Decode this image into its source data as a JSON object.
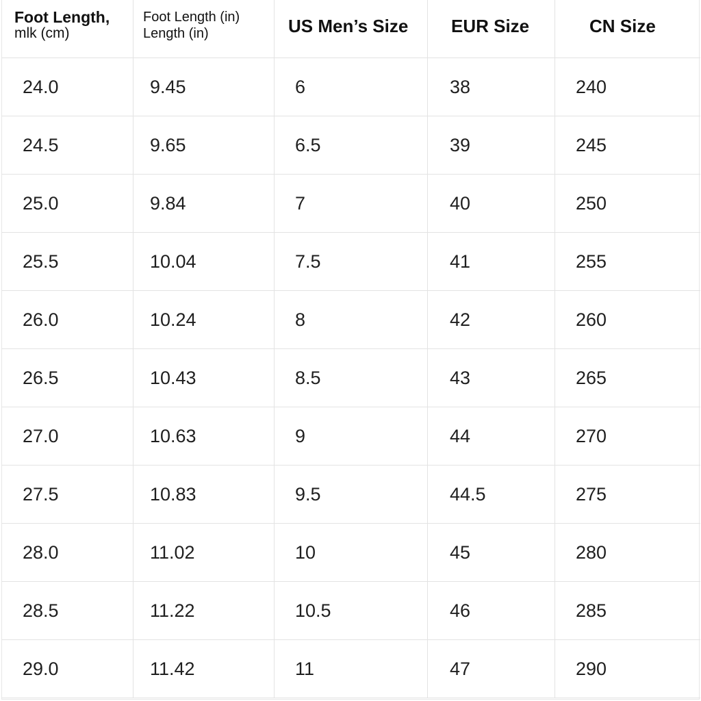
{
  "table": {
    "headers": [
      {
        "line1": "Foot Length,",
        "line2": "mlk (cm)"
      },
      {
        "line1": "Foot Length (in)",
        "line2": "Length (in)"
      },
      {
        "line1": "US Men’s Size"
      },
      {
        "line1": "EUR Size"
      },
      {
        "line1": "CN Size"
      }
    ],
    "rows": [
      [
        "24.0",
        "9.45",
        "6",
        "38",
        "240"
      ],
      [
        "24.5",
        "9.65",
        "6.5",
        "39",
        "245"
      ],
      [
        "25.0",
        "9.84",
        "7",
        "40",
        "250"
      ],
      [
        "25.5",
        "10.04",
        "7.5",
        "41",
        "255"
      ],
      [
        "26.0",
        "10.24",
        "8",
        "42",
        "260"
      ],
      [
        "26.5",
        "10.43",
        "8.5",
        "43",
        "265"
      ],
      [
        "27.0",
        "10.63",
        "9",
        "44",
        "270"
      ],
      [
        "27.5",
        "10.83",
        "9.5",
        "44.5",
        "275"
      ],
      [
        "28.0",
        "11.02",
        "10",
        "45",
        "280"
      ],
      [
        "28.5",
        "11.22",
        "10.5",
        "46",
        "285"
      ],
      [
        "29.0",
        "11.42",
        "11",
        "47",
        "290"
      ]
    ]
  }
}
